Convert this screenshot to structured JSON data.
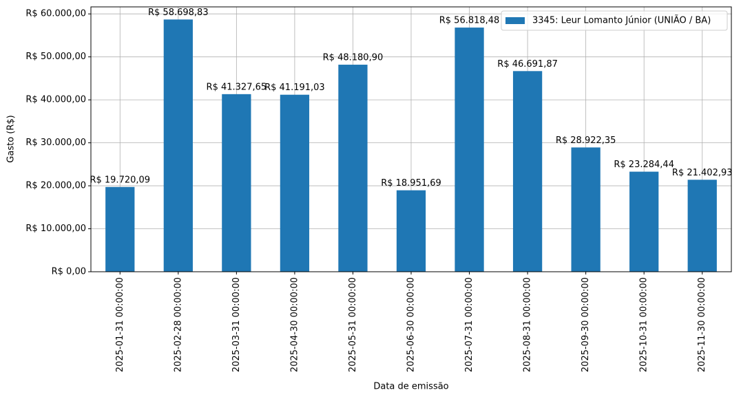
{
  "chart_data": {
    "type": "bar",
    "xlabel": "Data de emissão",
    "ylabel": "Gasto (R$)",
    "categories": [
      "2025-01-31 00:00:00",
      "2025-02-28 00:00:00",
      "2025-03-31 00:00:00",
      "2025-04-30 00:00:00",
      "2025-05-31 00:00:00",
      "2025-06-30 00:00:00",
      "2025-07-31 00:00:00",
      "2025-08-31 00:00:00",
      "2025-09-30 00:00:00",
      "2025-10-31 00:00:00",
      "2025-11-30 00:00:00"
    ],
    "series": [
      {
        "name": "3345: Leur Lomanto Júnior (UNIÃO / BA)",
        "color": "#1f77b4",
        "values": [
          19720.09,
          58698.83,
          41327.65,
          41191.03,
          48180.9,
          18951.69,
          56818.48,
          46691.87,
          28922.35,
          23284.44,
          21402.93
        ],
        "value_labels": [
          "R$ 19.720,09",
          "R$ 58.698,83",
          "R$ 41.327,65",
          "R$ 41.191,03",
          "R$ 48.180,90",
          "R$ 18.951,69",
          "R$ 56.818,48",
          "R$ 46.691,87",
          "R$ 28.922,35",
          "R$ 23.284,44",
          "R$ 21.402,93"
        ]
      }
    ],
    "ylim": [
      0,
      61633.77
    ],
    "yticks": [
      {
        "value": 0,
        "label": "R$ 0,00"
      },
      {
        "value": 10000,
        "label": "R$ 10.000,00"
      },
      {
        "value": 20000,
        "label": "R$ 20.000,00"
      },
      {
        "value": 30000,
        "label": "R$ 30.000,00"
      },
      {
        "value": 40000,
        "label": "R$ 40.000,00"
      },
      {
        "value": 50000,
        "label": "R$ 50.000,00"
      },
      {
        "value": 60000,
        "label": "R$ 60.000,00"
      }
    ],
    "grid": true,
    "legend": "upper right"
  }
}
